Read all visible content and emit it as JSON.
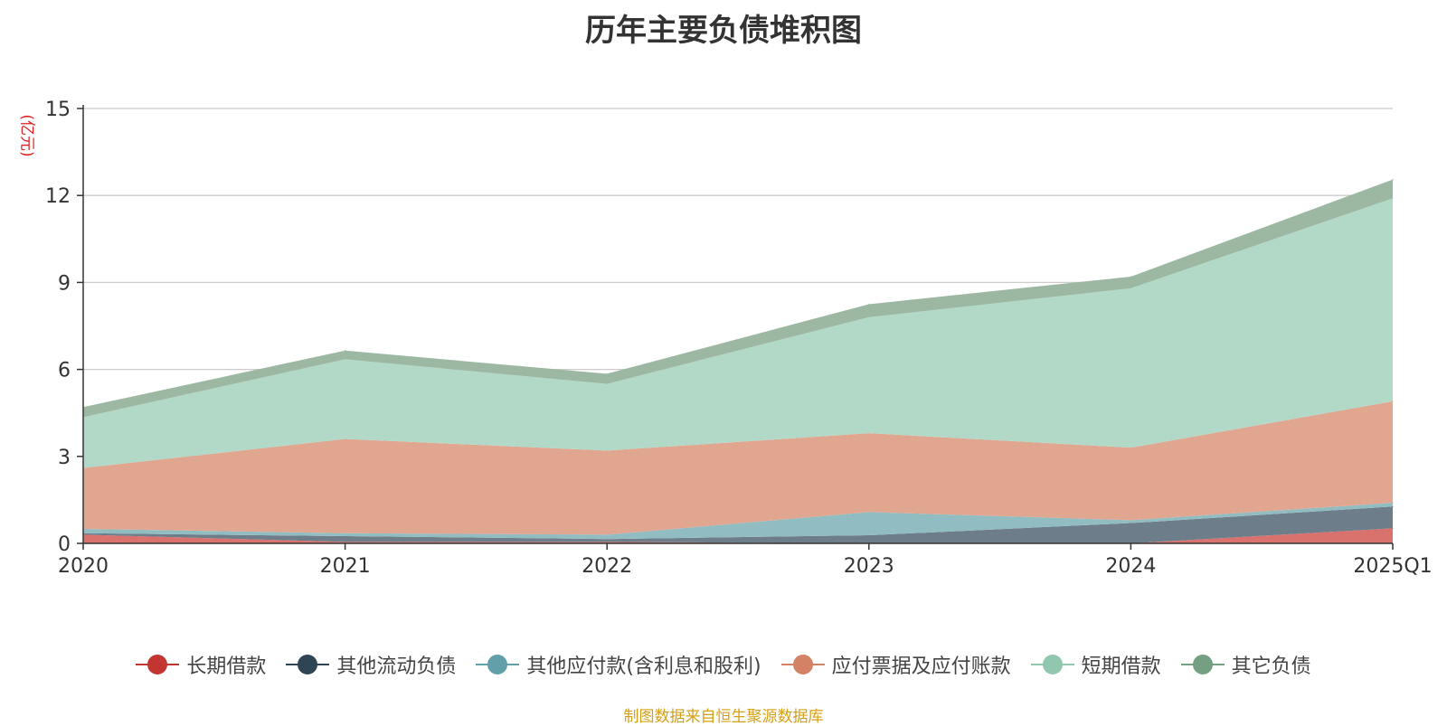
{
  "chart_data": {
    "type": "area",
    "stacked": true,
    "title": "历年主要负债堆积图",
    "ylabel": "(亿元)",
    "xlabel": "",
    "categories": [
      "2020",
      "2021",
      "2022",
      "2023",
      "2024",
      "2025Q1"
    ],
    "ylim": [
      0,
      15
    ],
    "yticks": [
      0,
      3,
      6,
      9,
      12,
      15
    ],
    "grid": true,
    "legend_position": "bottom",
    "series": [
      {
        "name": "长期借款",
        "color": "#c23531",
        "fill": "#d9716d",
        "values": [
          0.3,
          0.05,
          0.05,
          0.0,
          0.0,
          0.52
        ]
      },
      {
        "name": "其他流动负债",
        "color": "#2f4554",
        "fill": "#6e7d8a",
        "values": [
          0.05,
          0.2,
          0.1,
          0.28,
          0.7,
          0.75
        ]
      },
      {
        "name": "其他应付款(含利息和股利)",
        "color": "#61a0a8",
        "fill": "#91bdc2",
        "values": [
          0.15,
          0.1,
          0.15,
          0.8,
          0.1,
          0.13
        ]
      },
      {
        "name": "应付票据及应付账款",
        "color": "#d48265",
        "fill": "#e0a690",
        "values": [
          2.1,
          3.25,
          2.9,
          2.72,
          2.5,
          3.5
        ]
      },
      {
        "name": "短期借款",
        "color": "#91c7ae",
        "fill": "#b2d9c7",
        "values": [
          1.75,
          2.75,
          2.3,
          4.0,
          5.5,
          7.0
        ]
      },
      {
        "name": "其它负债",
        "color": "#749f83",
        "fill": "#9cb8a3",
        "values": [
          0.35,
          0.3,
          0.35,
          0.45,
          0.4,
          0.65
        ]
      }
    ]
  },
  "source_note": "制图数据来自恒生聚源数据库"
}
